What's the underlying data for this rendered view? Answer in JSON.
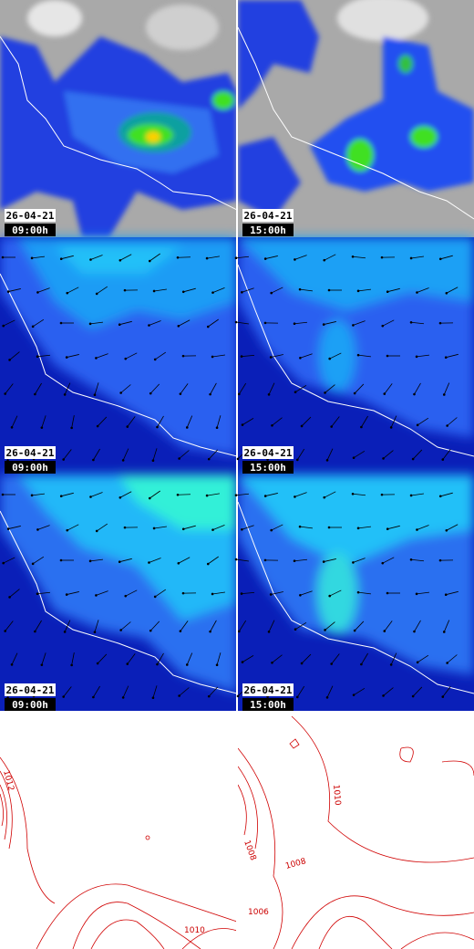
{
  "panels": [
    {
      "date": "26-04-21",
      "time": "09:00h"
    },
    {
      "date": "26-04-21",
      "time": "15:00h"
    },
    {
      "date": "26-04-21",
      "time": "09:00h"
    },
    {
      "date": "26-04-21",
      "time": "15:00h"
    },
    {
      "date": "26-04-21",
      "time": "09:00h"
    },
    {
      "date": "26-04-21",
      "time": "15:00h"
    }
  ],
  "pressure_panels": [
    {
      "contour_labels": [
        "1012",
        "1010"
      ]
    },
    {
      "contour_labels": [
        "1010",
        "1008",
        "1008",
        "1006"
      ]
    }
  ]
}
